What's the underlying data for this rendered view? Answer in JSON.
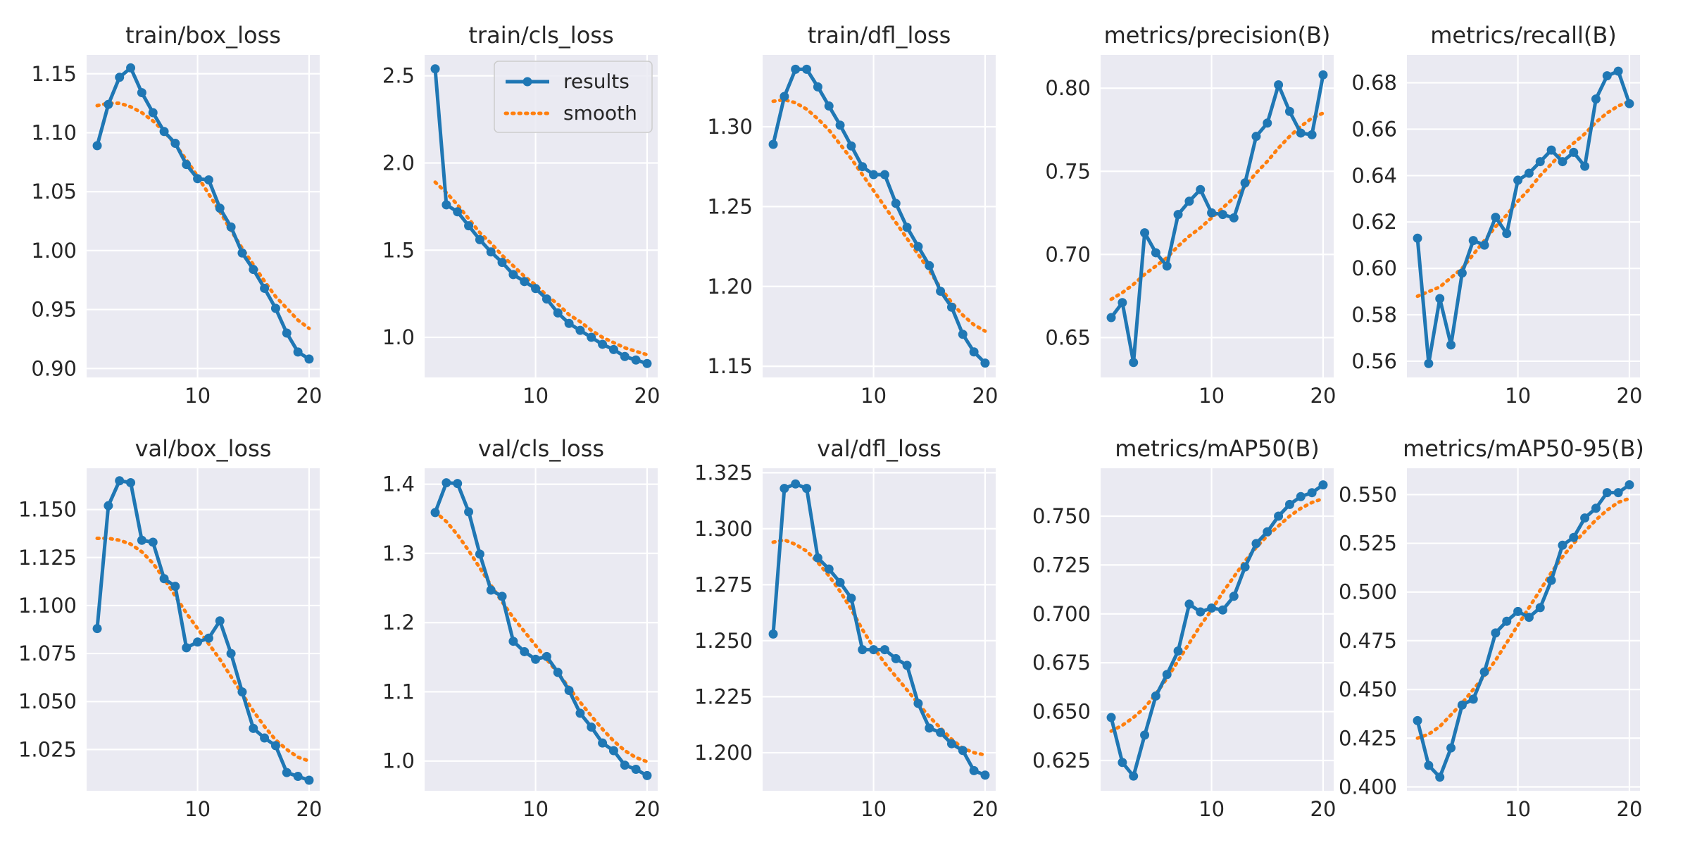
{
  "figure": {
    "background": "#ffffff",
    "axes_background": "#eaeaf2",
    "grid_color": "#ffffff",
    "series_colors": {
      "results": "#1f77b4",
      "smooth": "#ff7f0e"
    }
  },
  "chart_data": [
    {
      "type": "line",
      "title": "train/box_loss",
      "x": [
        1,
        2,
        3,
        4,
        5,
        6,
        7,
        8,
        9,
        10,
        11,
        12,
        13,
        14,
        15,
        16,
        17,
        18,
        19,
        20
      ],
      "xlim": [
        0.05,
        20.95
      ],
      "ylim": [
        0.8924,
        1.166
      ],
      "xticks": [
        10,
        20
      ],
      "yticks": [
        0.9,
        0.95,
        1.0,
        1.05,
        1.1,
        1.15
      ],
      "ytick_labels": [
        "0.90",
        "0.95",
        "1.00",
        "1.05",
        "1.10",
        "1.15"
      ],
      "series": [
        {
          "name": "results",
          "style": "line-marker",
          "values": [
            1.089,
            1.124,
            1.147,
            1.155,
            1.134,
            1.117,
            1.101,
            1.091,
            1.073,
            1.061,
            1.06,
            1.036,
            1.02,
            0.998,
            0.984,
            0.968,
            0.951,
            0.93,
            0.914,
            0.908
          ]
        },
        {
          "name": "smooth",
          "style": "dotted",
          "values": [
            1.123,
            1.125,
            1.125,
            1.122,
            1.117,
            1.11,
            1.101,
            1.09,
            1.077,
            1.063,
            1.048,
            1.033,
            1.017,
            1.002,
            0.988,
            0.974,
            0.961,
            0.951,
            0.941,
            0.934
          ]
        }
      ]
    },
    {
      "type": "line",
      "title": "train/cls_loss",
      "x": [
        1,
        2,
        3,
        4,
        5,
        6,
        7,
        8,
        9,
        10,
        11,
        12,
        13,
        14,
        15,
        16,
        17,
        18,
        19,
        20
      ],
      "xlim": [
        0.05,
        20.95
      ],
      "ylim": [
        0.77,
        2.62
      ],
      "xticks": [
        10,
        20
      ],
      "yticks": [
        1.0,
        1.5,
        2.0,
        2.5
      ],
      "ytick_labels": [
        "1.0",
        "1.5",
        "2.0",
        "2.5"
      ],
      "legend": {
        "position": "top-right",
        "entries": [
          "results",
          "smooth"
        ]
      },
      "series": [
        {
          "name": "results",
          "style": "line-marker",
          "values": [
            2.54,
            1.76,
            1.72,
            1.64,
            1.56,
            1.49,
            1.43,
            1.36,
            1.32,
            1.28,
            1.22,
            1.14,
            1.08,
            1.04,
            1.0,
            0.96,
            0.93,
            0.89,
            0.87,
            0.85
          ]
        },
        {
          "name": "smooth",
          "style": "dotted",
          "values": [
            1.89,
            1.83,
            1.76,
            1.68,
            1.6,
            1.54,
            1.47,
            1.41,
            1.35,
            1.3,
            1.24,
            1.19,
            1.13,
            1.09,
            1.04,
            1.0,
            0.97,
            0.94,
            0.92,
            0.9
          ]
        }
      ]
    },
    {
      "type": "line",
      "title": "train/dfl_loss",
      "x": [
        1,
        2,
        3,
        4,
        5,
        6,
        7,
        8,
        9,
        10,
        11,
        12,
        13,
        14,
        15,
        16,
        17,
        18,
        19,
        20
      ],
      "xlim": [
        0.05,
        20.95
      ],
      "ylim": [
        1.143,
        1.345
      ],
      "xticks": [
        10,
        20
      ],
      "yticks": [
        1.15,
        1.2,
        1.25,
        1.3
      ],
      "ytick_labels": [
        "1.15",
        "1.20",
        "1.25",
        "1.30"
      ],
      "series": [
        {
          "name": "results",
          "style": "line-marker",
          "values": [
            1.289,
            1.319,
            1.336,
            1.336,
            1.325,
            1.313,
            1.301,
            1.288,
            1.275,
            1.27,
            1.27,
            1.252,
            1.237,
            1.225,
            1.213,
            1.197,
            1.187,
            1.17,
            1.159,
            1.152
          ]
        },
        {
          "name": "smooth",
          "style": "dotted",
          "values": [
            1.316,
            1.317,
            1.315,
            1.311,
            1.305,
            1.298,
            1.289,
            1.28,
            1.27,
            1.26,
            1.25,
            1.24,
            1.23,
            1.22,
            1.21,
            1.199,
            1.19,
            1.182,
            1.176,
            1.172
          ]
        }
      ]
    },
    {
      "type": "line",
      "title": "metrics/precision(B)",
      "x": [
        1,
        2,
        3,
        4,
        5,
        6,
        7,
        8,
        9,
        10,
        11,
        12,
        13,
        14,
        15,
        16,
        17,
        18,
        19,
        20
      ],
      "xlim": [
        0.05,
        20.95
      ],
      "ylim": [
        0.626,
        0.82
      ],
      "xticks": [
        10,
        20
      ],
      "yticks": [
        0.65,
        0.7,
        0.75,
        0.8
      ],
      "ytick_labels": [
        "0.65",
        "0.70",
        "0.75",
        "0.80"
      ],
      "series": [
        {
          "name": "results",
          "style": "line-marker",
          "values": [
            0.662,
            0.671,
            0.635,
            0.713,
            0.701,
            0.693,
            0.724,
            0.732,
            0.739,
            0.725,
            0.724,
            0.722,
            0.743,
            0.771,
            0.779,
            0.802,
            0.786,
            0.773,
            0.772,
            0.808
          ]
        },
        {
          "name": "smooth",
          "style": "dotted",
          "values": [
            0.673,
            0.677,
            0.682,
            0.688,
            0.693,
            0.698,
            0.705,
            0.711,
            0.716,
            0.722,
            0.728,
            0.734,
            0.741,
            0.749,
            0.756,
            0.764,
            0.771,
            0.777,
            0.782,
            0.785
          ]
        }
      ]
    },
    {
      "type": "line",
      "title": "metrics/recall(B)",
      "x": [
        1,
        2,
        3,
        4,
        5,
        6,
        7,
        8,
        9,
        10,
        11,
        12,
        13,
        14,
        15,
        16,
        17,
        18,
        19,
        20
      ],
      "xlim": [
        0.05,
        20.95
      ],
      "ylim": [
        0.553,
        0.692
      ],
      "xticks": [
        10,
        20
      ],
      "yticks": [
        0.56,
        0.58,
        0.6,
        0.62,
        0.64,
        0.66,
        0.68
      ],
      "ytick_labels": [
        "0.56",
        "0.58",
        "0.60",
        "0.62",
        "0.64",
        "0.66",
        "0.68"
      ],
      "series": [
        {
          "name": "results",
          "style": "line-marker",
          "values": [
            0.613,
            0.559,
            0.587,
            0.567,
            0.598,
            0.612,
            0.61,
            0.622,
            0.615,
            0.638,
            0.641,
            0.646,
            0.651,
            0.646,
            0.65,
            0.644,
            0.673,
            0.683,
            0.685,
            0.671
          ]
        },
        {
          "name": "smooth",
          "style": "dotted",
          "values": [
            0.588,
            0.59,
            0.592,
            0.596,
            0.6,
            0.606,
            0.612,
            0.618,
            0.623,
            0.629,
            0.634,
            0.64,
            0.645,
            0.65,
            0.654,
            0.658,
            0.663,
            0.667,
            0.67,
            0.672
          ]
        }
      ]
    },
    {
      "type": "line",
      "title": "val/box_loss",
      "x": [
        1,
        2,
        3,
        4,
        5,
        6,
        7,
        8,
        9,
        10,
        11,
        12,
        13,
        14,
        15,
        16,
        17,
        18,
        19,
        20
      ],
      "xlim": [
        0.05,
        20.95
      ],
      "ylim": [
        1.0035,
        1.1715
      ],
      "xticks": [
        10,
        20
      ],
      "yticks": [
        1.025,
        1.05,
        1.075,
        1.1,
        1.125,
        1.15
      ],
      "ytick_labels": [
        "1.025",
        "1.050",
        "1.075",
        "1.100",
        "1.125",
        "1.150"
      ],
      "series": [
        {
          "name": "results",
          "style": "line-marker",
          "values": [
            1.088,
            1.152,
            1.165,
            1.164,
            1.134,
            1.133,
            1.114,
            1.11,
            1.078,
            1.081,
            1.083,
            1.092,
            1.075,
            1.055,
            1.036,
            1.031,
            1.027,
            1.013,
            1.011,
            1.009
          ]
        },
        {
          "name": "smooth",
          "style": "dotted",
          "values": [
            1.135,
            1.135,
            1.134,
            1.132,
            1.128,
            1.122,
            1.114,
            1.105,
            1.096,
            1.088,
            1.08,
            1.072,
            1.063,
            1.054,
            1.045,
            1.037,
            1.03,
            1.025,
            1.021,
            1.019
          ]
        }
      ]
    },
    {
      "type": "line",
      "title": "val/cls_loss",
      "x": [
        1,
        2,
        3,
        4,
        5,
        6,
        7,
        8,
        9,
        10,
        11,
        12,
        13,
        14,
        15,
        16,
        17,
        18,
        19,
        20
      ],
      "xlim": [
        0.05,
        20.95
      ],
      "ylim": [
        0.957,
        1.423
      ],
      "xticks": [
        10,
        20
      ],
      "yticks": [
        1.0,
        1.1,
        1.2,
        1.3,
        1.4
      ],
      "ytick_labels": [
        "1.0",
        "1.1",
        "1.2",
        "1.3",
        "1.4"
      ],
      "series": [
        {
          "name": "results",
          "style": "line-marker",
          "values": [
            1.359,
            1.402,
            1.401,
            1.36,
            1.299,
            1.247,
            1.238,
            1.173,
            1.158,
            1.147,
            1.151,
            1.128,
            1.102,
            1.069,
            1.049,
            1.026,
            1.015,
            0.994,
            0.988,
            0.979
          ]
        },
        {
          "name": "smooth",
          "style": "dotted",
          "values": [
            1.36,
            1.346,
            1.327,
            1.304,
            1.279,
            1.254,
            1.23,
            1.207,
            1.187,
            1.167,
            1.147,
            1.127,
            1.106,
            1.085,
            1.065,
            1.046,
            1.029,
            1.015,
            1.005,
            0.999
          ]
        }
      ]
    },
    {
      "type": "line",
      "title": "val/dfl_loss",
      "x": [
        1,
        2,
        3,
        4,
        5,
        6,
        7,
        8,
        9,
        10,
        11,
        12,
        13,
        14,
        15,
        16,
        17,
        18,
        19,
        20
      ],
      "xlim": [
        0.05,
        20.95
      ],
      "ylim": [
        1.183,
        1.327
      ],
      "xticks": [
        10,
        20
      ],
      "yticks": [
        1.2,
        1.225,
        1.25,
        1.275,
        1.3,
        1.325
      ],
      "ytick_labels": [
        "1.200",
        "1.225",
        "1.250",
        "1.275",
        "1.300",
        "1.325"
      ],
      "series": [
        {
          "name": "results",
          "style": "line-marker",
          "values": [
            1.253,
            1.318,
            1.32,
            1.318,
            1.287,
            1.282,
            1.276,
            1.269,
            1.246,
            1.246,
            1.246,
            1.242,
            1.239,
            1.222,
            1.211,
            1.209,
            1.204,
            1.201,
            1.192,
            1.19
          ]
        },
        {
          "name": "smooth",
          "style": "dotted",
          "values": [
            1.294,
            1.295,
            1.293,
            1.29,
            1.285,
            1.279,
            1.272,
            1.264,
            1.255,
            1.247,
            1.24,
            1.234,
            1.228,
            1.222,
            1.216,
            1.211,
            1.206,
            1.202,
            1.2,
            1.199
          ]
        }
      ]
    },
    {
      "type": "line",
      "title": "metrics/mAP50(B)",
      "x": [
        1,
        2,
        3,
        4,
        5,
        6,
        7,
        8,
        9,
        10,
        11,
        12,
        13,
        14,
        15,
        16,
        17,
        18,
        19,
        20
      ],
      "xlim": [
        0.05,
        20.95
      ],
      "ylim": [
        0.6095,
        0.7745
      ],
      "xticks": [
        10,
        20
      ],
      "yticks": [
        0.625,
        0.65,
        0.675,
        0.7,
        0.725,
        0.75
      ],
      "ytick_labels": [
        "0.625",
        "0.650",
        "0.675",
        "0.700",
        "0.725",
        "0.750"
      ],
      "series": [
        {
          "name": "results",
          "style": "line-marker",
          "values": [
            0.647,
            0.624,
            0.617,
            0.638,
            0.658,
            0.669,
            0.681,
            0.705,
            0.701,
            0.703,
            0.702,
            0.709,
            0.724,
            0.736,
            0.742,
            0.75,
            0.756,
            0.76,
            0.762,
            0.766
          ]
        },
        {
          "name": "smooth",
          "style": "dotted",
          "values": [
            0.64,
            0.643,
            0.647,
            0.652,
            0.659,
            0.667,
            0.676,
            0.685,
            0.694,
            0.702,
            0.711,
            0.719,
            0.727,
            0.734,
            0.74,
            0.745,
            0.75,
            0.754,
            0.757,
            0.759
          ]
        }
      ]
    },
    {
      "type": "line",
      "title": "metrics/mAP50-95(B)",
      "x": [
        1,
        2,
        3,
        4,
        5,
        6,
        7,
        8,
        9,
        10,
        11,
        12,
        13,
        14,
        15,
        16,
        17,
        18,
        19,
        20
      ],
      "xlim": [
        0.05,
        20.95
      ],
      "ylim": [
        0.398,
        0.5635
      ],
      "xticks": [
        10,
        20
      ],
      "yticks": [
        0.4,
        0.425,
        0.45,
        0.475,
        0.5,
        0.525,
        0.55
      ],
      "ytick_labels": [
        "0.400",
        "0.425",
        "0.450",
        "0.475",
        "0.500",
        "0.525",
        "0.550"
      ],
      "series": [
        {
          "name": "results",
          "style": "line-marker",
          "values": [
            0.434,
            0.411,
            0.405,
            0.42,
            0.442,
            0.445,
            0.459,
            0.479,
            0.485,
            0.49,
            0.487,
            0.492,
            0.506,
            0.524,
            0.528,
            0.538,
            0.543,
            0.551,
            0.551,
            0.555
          ]
        },
        {
          "name": "smooth",
          "style": "dotted",
          "values": [
            0.425,
            0.427,
            0.431,
            0.437,
            0.443,
            0.45,
            0.457,
            0.465,
            0.474,
            0.483,
            0.492,
            0.501,
            0.51,
            0.518,
            0.525,
            0.531,
            0.537,
            0.542,
            0.546,
            0.548
          ]
        }
      ]
    }
  ]
}
